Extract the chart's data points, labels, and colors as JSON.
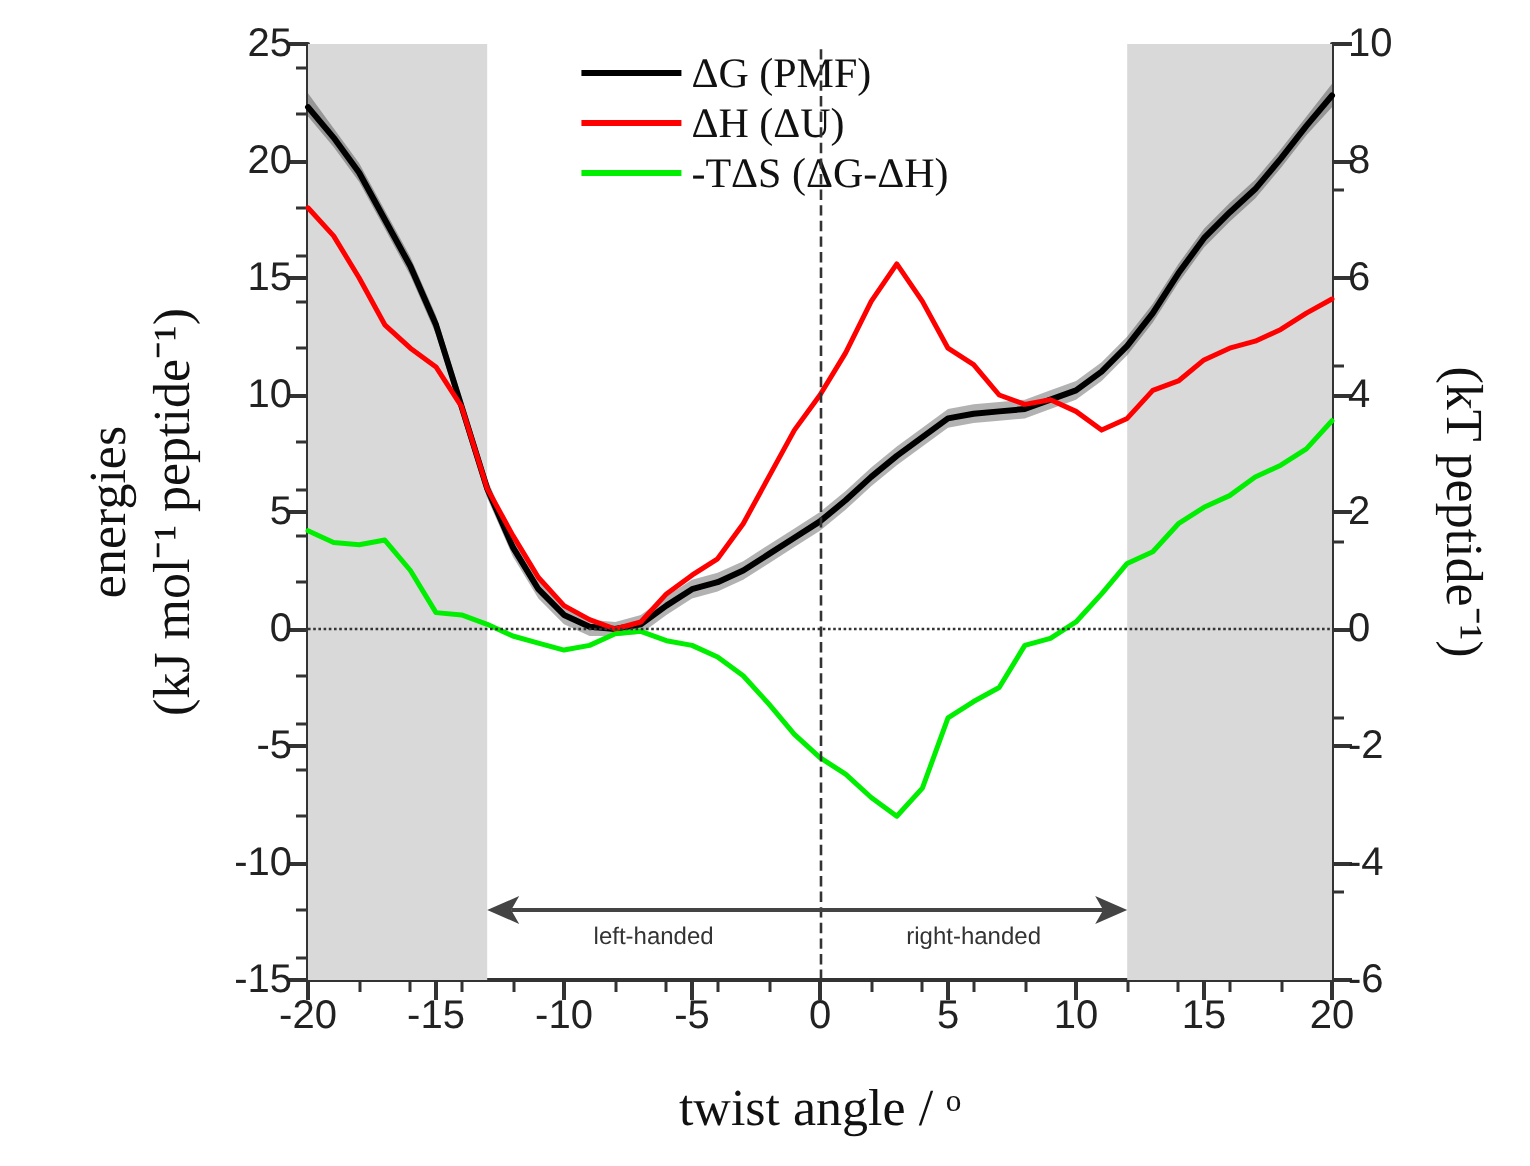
{
  "chart_data": {
    "type": "line",
    "xlabel": "twist angle / ᵒ",
    "ylabel": "energies\n(kJ mol⁻¹ peptide⁻¹)",
    "y2label": "(kT peptide⁻¹)",
    "x": [
      -20,
      -19,
      -18,
      -17,
      -16,
      -15,
      -14,
      -13,
      -12,
      -11,
      -10,
      -9,
      -8,
      -7,
      -6,
      -5,
      -4,
      -3,
      -2,
      -1,
      0,
      1,
      2,
      3,
      4,
      5,
      6,
      7,
      8,
      9,
      10,
      11,
      12,
      13,
      14,
      15,
      16,
      17,
      18,
      19,
      20
    ],
    "series": [
      {
        "name": "ΔG (PMF)",
        "color": "#000000",
        "values": [
          22.3,
          21,
          19.5,
          17.5,
          15.5,
          13,
          9.5,
          6,
          3.5,
          1.7,
          0.6,
          0.1,
          0,
          0.2,
          1,
          1.7,
          2,
          2.5,
          3.2,
          3.9,
          4.6,
          5.5,
          6.5,
          7.4,
          8.2,
          9,
          9.2,
          9.3,
          9.4,
          9.8,
          10.2,
          11,
          12.1,
          13.5,
          15.2,
          16.7,
          17.8,
          18.8,
          20.1,
          21.5,
          22.8
        ],
        "lower": [
          21.9,
          20.6,
          19.1,
          17.1,
          15.1,
          12.6,
          9.1,
          5.6,
          3.1,
          1.3,
          0.2,
          -0.3,
          -0.3,
          -0.2,
          0.6,
          1.3,
          1.6,
          2.1,
          2.8,
          3.5,
          4.2,
          5.1,
          6.1,
          7,
          7.8,
          8.6,
          8.8,
          8.9,
          9,
          9.4,
          9.8,
          10.6,
          11.7,
          13.1,
          14.8,
          16.3,
          17.4,
          18.4,
          19.7,
          21.1,
          22.3
        ],
        "upper": [
          22.9,
          21.4,
          19.9,
          17.9,
          15.9,
          13.4,
          9.9,
          6.4,
          3.9,
          2.1,
          1,
          0.4,
          0.3,
          0.6,
          1.4,
          2.1,
          2.4,
          2.9,
          3.6,
          4.3,
          5,
          5.9,
          6.9,
          7.8,
          8.6,
          9.4,
          9.6,
          9.7,
          9.8,
          10.2,
          10.6,
          11.4,
          12.5,
          13.9,
          15.6,
          17.1,
          18.2,
          19.2,
          20.5,
          21.9,
          23.3
        ]
      },
      {
        "name": "ΔH (ΔU)",
        "color": "#ff0000",
        "values": [
          18,
          16.8,
          15,
          13,
          12,
          11.2,
          9.5,
          6,
          4,
          2.2,
          1,
          0.4,
          0,
          0.3,
          1.5,
          2.3,
          3,
          4.5,
          6.5,
          8.5,
          10,
          11.8,
          14,
          15.6,
          14,
          12,
          11.3,
          10,
          9.6,
          9.8,
          9.3,
          8.5,
          9,
          10.2,
          10.6,
          11.5,
          12,
          12.3,
          12.8,
          13.5,
          14.1
        ]
      },
      {
        "name": "-TΔS (ΔG-ΔH)",
        "color": "#00ee00",
        "values": [
          4.2,
          3.7,
          3.6,
          3.8,
          2.5,
          0.7,
          0.6,
          0.2,
          -0.3,
          -0.6,
          -0.9,
          -0.7,
          -0.2,
          -0.1,
          -0.5,
          -0.7,
          -1.2,
          -2,
          -3.2,
          -4.5,
          -5.5,
          -6.2,
          -7.2,
          -8,
          -6.8,
          -3.8,
          -3.1,
          -2.5,
          -0.7,
          -0.4,
          0.3,
          1.5,
          2.8,
          3.3,
          4.5,
          5.2,
          5.7,
          6.5,
          7,
          7.7,
          8.9
        ]
      }
    ],
    "xlim": [
      -20,
      20
    ],
    "xticks": [
      -20,
      -15,
      -10,
      -5,
      0,
      5,
      10,
      15,
      20
    ],
    "ylim": [
      -15,
      25
    ],
    "yticks": [
      -15,
      -10,
      -5,
      0,
      5,
      10,
      15,
      20,
      25
    ],
    "y2lim": [
      -6,
      10
    ],
    "y2ticks": [
      -6,
      -4,
      -2,
      0,
      2,
      4,
      6,
      8,
      10
    ],
    "ref_lines": [
      {
        "axis": "y",
        "value": 0,
        "line_style": "dotted",
        "color": "#333333"
      },
      {
        "axis": "x",
        "value": 0,
        "line_style": "dashed",
        "color": "#333333"
      }
    ],
    "bands": [
      {
        "axis": "x",
        "from": -20,
        "to": -13,
        "color": "#d9d9d9"
      },
      {
        "axis": "x",
        "from": 12,
        "to": 20,
        "color": "#d9d9d9"
      }
    ],
    "annotations": [
      "left-handed",
      "right-handed"
    ],
    "legend": "top",
    "grid": false,
    "marker": "none",
    "line_style": "solid"
  }
}
